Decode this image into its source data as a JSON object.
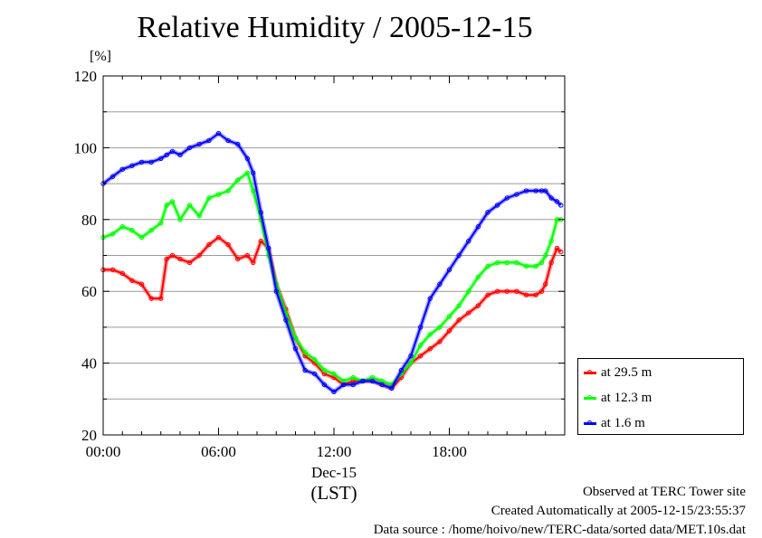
{
  "title": "Relative Humidity / 2005-12-15",
  "unit_label": "[%]",
  "footer": {
    "line1": "Observed at TERC Tower site",
    "line2": "Created Automatically at 2005-12-15/23:55:37",
    "line3": "Data source : /home/hoivo/new/TERC-data/sorted  data/MET.10s.dat"
  },
  "legend": [
    {
      "label": "at 29.5 m",
      "color": "#ff0000"
    },
    {
      "label": "at 12.3 m",
      "color": "#00ff00"
    },
    {
      "label": "at 1.6 m",
      "color": "#0000ff"
    }
  ],
  "chart_data": {
    "type": "line",
    "title": "Relative Humidity / 2005-12-15",
    "ylabel": "[%]",
    "xlabel": "(LST)",
    "date_label": "Dec-15",
    "xlim": [
      0,
      24
    ],
    "ylim": [
      20,
      120
    ],
    "xticks": [
      0,
      6,
      12,
      18
    ],
    "xtick_labels": [
      "00:00",
      "06:00",
      "12:00",
      "18:00"
    ],
    "yticks": [
      20,
      40,
      60,
      80,
      100,
      120
    ],
    "ytick_labels": [
      "20",
      "40",
      "60",
      "80",
      "100",
      "120"
    ],
    "grid": true,
    "legend_position": "right",
    "series": [
      {
        "name": "at 29.5 m",
        "color": "#ff0000",
        "x": [
          0,
          0.5,
          1,
          1.5,
          2,
          2.5,
          3,
          3.3,
          3.6,
          4,
          4.5,
          5,
          5.5,
          6,
          6.5,
          7,
          7.5,
          7.8,
          8.2,
          8.6,
          9,
          9.5,
          10,
          10.5,
          11,
          11.5,
          12,
          12.5,
          13,
          13.5,
          14,
          14.5,
          15,
          15.5,
          16,
          16.5,
          17,
          17.5,
          18,
          18.5,
          19,
          19.5,
          20,
          20.5,
          21,
          21.5,
          22,
          22.5,
          22.8,
          23,
          23.3,
          23.6,
          23.8
        ],
        "y": [
          66,
          66,
          65,
          63,
          62,
          58,
          58,
          69,
          70,
          69,
          68,
          70,
          73,
          75,
          73,
          69,
          70,
          68,
          74,
          72,
          62,
          55,
          47,
          42,
          40,
          37,
          36,
          34,
          35,
          35,
          35,
          34,
          33,
          36,
          40,
          42,
          44,
          46,
          49,
          52,
          54,
          56,
          59,
          60,
          60,
          60,
          59,
          59,
          60,
          62,
          68,
          72,
          71
        ]
      },
      {
        "name": "at 12.3 m",
        "color": "#00ff00",
        "x": [
          0,
          0.5,
          1,
          1.5,
          2,
          2.5,
          3,
          3.3,
          3.6,
          4,
          4.5,
          5,
          5.5,
          6,
          6.5,
          7,
          7.5,
          7.8,
          8.2,
          8.6,
          9,
          9.5,
          10,
          10.5,
          11,
          11.5,
          12,
          12.5,
          13,
          13.5,
          14,
          14.5,
          15,
          15.5,
          16,
          16.5,
          17,
          17.5,
          18,
          18.5,
          19,
          19.5,
          20,
          20.5,
          21,
          21.5,
          22,
          22.5,
          22.8,
          23,
          23.3,
          23.6,
          23.8
        ],
        "y": [
          75,
          76,
          78,
          77,
          75,
          77,
          79,
          84,
          85,
          80,
          84,
          81,
          86,
          87,
          88,
          91,
          93,
          88,
          80,
          70,
          62,
          54,
          47,
          43,
          41,
          38,
          37,
          35,
          36,
          35,
          36,
          35,
          34,
          37,
          40,
          45,
          48,
          50,
          53,
          56,
          60,
          64,
          67,
          68,
          68,
          68,
          67,
          67,
          68,
          70,
          74,
          80,
          80
        ]
      },
      {
        "name": "at 1.6 m",
        "color": "#0000ff",
        "x": [
          0,
          0.5,
          1,
          1.5,
          2,
          2.5,
          3,
          3.3,
          3.6,
          4,
          4.5,
          5,
          5.5,
          6,
          6.5,
          7,
          7.5,
          7.8,
          8.2,
          8.6,
          9,
          9.5,
          10,
          10.5,
          11,
          11.5,
          12,
          12.5,
          13,
          13.5,
          14,
          14.5,
          15,
          15.5,
          16,
          16.5,
          17,
          17.5,
          18,
          18.5,
          19,
          19.5,
          20,
          20.5,
          21,
          21.5,
          22,
          22.5,
          22.8,
          23,
          23.3,
          23.6,
          23.8
        ],
        "y": [
          90,
          92,
          94,
          95,
          96,
          96,
          97,
          98,
          99,
          98,
          100,
          101,
          102,
          104,
          102,
          101,
          97,
          93,
          82,
          72,
          60,
          52,
          44,
          38,
          37,
          34,
          32,
          34,
          34,
          35,
          35,
          34,
          33,
          38,
          42,
          50,
          58,
          62,
          66,
          70,
          74,
          78,
          82,
          84,
          86,
          87,
          88,
          88,
          88,
          88,
          86,
          85,
          84
        ]
      }
    ]
  }
}
